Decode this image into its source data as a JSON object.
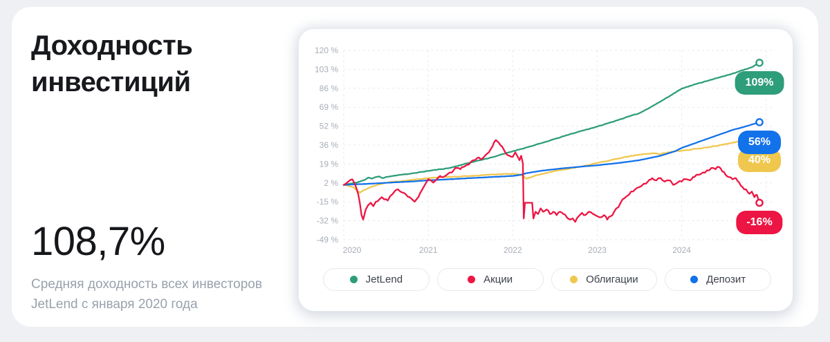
{
  "page": {
    "background": "#eef0f3",
    "card_background": "#ffffff"
  },
  "left_panel": {
    "title": "Доходность инвестиций",
    "big_number": "108,7%",
    "subtitle": "Средняя доходность всех инвесторов JetLend с января 2020 года"
  },
  "chart_data": {
    "type": "line",
    "grid": "dashed",
    "legend_position": "bottom",
    "x_axis": {
      "min": 2020,
      "max": 2025.1,
      "ticks": [
        2020,
        2021,
        2022,
        2023,
        2024
      ],
      "grid_years": [
        2020,
        2021,
        2022,
        2023,
        2024,
        2025
      ]
    },
    "y_axis": {
      "min": -49,
      "max": 120,
      "tick_labels": [
        "120 %",
        "103 %",
        "86 %",
        "69 %",
        "52 %",
        "36 %",
        "19 %",
        "2 %",
        "-15 %",
        "-32 %",
        "-49 %"
      ]
    },
    "series": [
      {
        "key": "jetlend",
        "name": "JetLend",
        "color": "#2E9D7A",
        "end_label": "109%",
        "noise": 0.2,
        "points": [
          [
            2020,
            0
          ],
          [
            2020.08,
            1
          ],
          [
            2020.17,
            2.5
          ],
          [
            2020.25,
            4.5
          ],
          [
            2020.29,
            6.5
          ],
          [
            2020.33,
            5.5
          ],
          [
            2020.38,
            7
          ],
          [
            2020.42,
            7.5
          ],
          [
            2020.46,
            6
          ],
          [
            2020.5,
            7
          ],
          [
            2020.58,
            8
          ],
          [
            2020.67,
            9
          ],
          [
            2020.75,
            9.5
          ],
          [
            2020.83,
            10.5
          ],
          [
            2020.92,
            11.5
          ],
          [
            2021,
            12.5
          ],
          [
            2021.25,
            15
          ],
          [
            2021.5,
            20
          ],
          [
            2021.75,
            24.5
          ],
          [
            2022,
            30
          ],
          [
            2022.17,
            33.5
          ],
          [
            2022.33,
            37
          ],
          [
            2022.5,
            41
          ],
          [
            2022.67,
            45
          ],
          [
            2022.83,
            48.5
          ],
          [
            2023,
            52
          ],
          [
            2023.17,
            56
          ],
          [
            2023.33,
            60
          ],
          [
            2023.5,
            64
          ],
          [
            2023.67,
            71
          ],
          [
            2023.83,
            78
          ],
          [
            2024,
            86
          ],
          [
            2024.17,
            90
          ],
          [
            2024.33,
            93.5
          ],
          [
            2024.5,
            97
          ],
          [
            2024.67,
            101
          ],
          [
            2024.83,
            105
          ],
          [
            2024.92,
            109
          ]
        ]
      },
      {
        "key": "stocks",
        "name": "Акции",
        "color": "#ED1543",
        "end_label": "-16%",
        "noise": 1.15,
        "points": [
          [
            2020,
            0
          ],
          [
            2020.04,
            2
          ],
          [
            2020.07,
            4
          ],
          [
            2020.1,
            5
          ],
          [
            2020.13,
            1
          ],
          [
            2020.15,
            -3
          ],
          [
            2020.17,
            -8
          ],
          [
            2020.19,
            -16
          ],
          [
            2020.21,
            -27
          ],
          [
            2020.23,
            -31
          ],
          [
            2020.26,
            -22
          ],
          [
            2020.29,
            -18
          ],
          [
            2020.32,
            -16
          ],
          [
            2020.35,
            -19
          ],
          [
            2020.38,
            -15
          ],
          [
            2020.42,
            -13
          ],
          [
            2020.45,
            -11
          ],
          [
            2020.48,
            -13
          ],
          [
            2020.52,
            -14
          ],
          [
            2020.55,
            -10
          ],
          [
            2020.58,
            -8
          ],
          [
            2020.61,
            -5
          ],
          [
            2020.64,
            -4
          ],
          [
            2020.67,
            -6
          ],
          [
            2020.7,
            -7
          ],
          [
            2020.74,
            -9
          ],
          [
            2020.78,
            -11
          ],
          [
            2020.81,
            -13
          ],
          [
            2020.84,
            -15
          ],
          [
            2020.87,
            -12
          ],
          [
            2020.9,
            -8
          ],
          [
            2020.93,
            -4
          ],
          [
            2020.96,
            0
          ],
          [
            2021,
            5
          ],
          [
            2021.03,
            4
          ],
          [
            2021.06,
            2
          ],
          [
            2021.1,
            5
          ],
          [
            2021.14,
            8
          ],
          [
            2021.18,
            7
          ],
          [
            2021.22,
            9
          ],
          [
            2021.26,
            11
          ],
          [
            2021.3,
            13
          ],
          [
            2021.34,
            15
          ],
          [
            2021.38,
            14
          ],
          [
            2021.42,
            16
          ],
          [
            2021.46,
            18
          ],
          [
            2021.5,
            20
          ],
          [
            2021.54,
            22
          ],
          [
            2021.58,
            24
          ],
          [
            2021.62,
            23
          ],
          [
            2021.66,
            25
          ],
          [
            2021.7,
            28
          ],
          [
            2021.74,
            32
          ],
          [
            2021.78,
            38
          ],
          [
            2021.8,
            40
          ],
          [
            2021.83,
            38
          ],
          [
            2021.86,
            35
          ],
          [
            2021.89,
            32
          ],
          [
            2021.92,
            28
          ],
          [
            2021.96,
            26
          ],
          [
            2022,
            25
          ],
          [
            2022.03,
            29
          ],
          [
            2022.06,
            25
          ],
          [
            2022.08,
            22
          ],
          [
            2022.1,
            26
          ],
          [
            2022.12,
            19
          ],
          [
            2022.13,
            -30
          ],
          [
            2022.145,
            -16
          ],
          [
            2022.23,
            -16
          ],
          [
            2022.245,
            -30
          ],
          [
            2022.27,
            -24
          ],
          [
            2022.3,
            -26
          ],
          [
            2022.33,
            -21
          ],
          [
            2022.36,
            -24
          ],
          [
            2022.4,
            -22
          ],
          [
            2022.44,
            -26
          ],
          [
            2022.48,
            -24
          ],
          [
            2022.52,
            -27
          ],
          [
            2022.56,
            -24
          ],
          [
            2022.6,
            -26
          ],
          [
            2022.64,
            -29
          ],
          [
            2022.68,
            -31
          ],
          [
            2022.71,
            -30
          ],
          [
            2022.74,
            -33
          ],
          [
            2022.78,
            -28
          ],
          [
            2022.82,
            -25
          ],
          [
            2022.86,
            -27
          ],
          [
            2022.9,
            -24
          ],
          [
            2022.95,
            -26
          ],
          [
            2023,
            -28
          ],
          [
            2023.04,
            -29
          ],
          [
            2023.08,
            -27
          ],
          [
            2023.12,
            -31
          ],
          [
            2023.16,
            -28
          ],
          [
            2023.2,
            -24
          ],
          [
            2023.25,
            -20
          ],
          [
            2023.3,
            -13
          ],
          [
            2023.35,
            -10
          ],
          [
            2023.4,
            -6
          ],
          [
            2023.45,
            -4
          ],
          [
            2023.5,
            -2
          ],
          [
            2023.55,
            1
          ],
          [
            2023.6,
            3
          ],
          [
            2023.65,
            6
          ],
          [
            2023.7,
            4
          ],
          [
            2023.75,
            6
          ],
          [
            2023.8,
            3
          ],
          [
            2023.85,
            4
          ],
          [
            2023.9,
            0
          ],
          [
            2023.95,
            2
          ],
          [
            2024,
            3
          ],
          [
            2024.05,
            5
          ],
          [
            2024.1,
            4
          ],
          [
            2024.15,
            7
          ],
          [
            2024.2,
            9
          ],
          [
            2024.25,
            11
          ],
          [
            2024.3,
            13
          ],
          [
            2024.35,
            15
          ],
          [
            2024.4,
            14
          ],
          [
            2024.44,
            16
          ],
          [
            2024.48,
            12
          ],
          [
            2024.52,
            9
          ],
          [
            2024.56,
            7
          ],
          [
            2024.6,
            5
          ],
          [
            2024.64,
            6
          ],
          [
            2024.68,
            2
          ],
          [
            2024.72,
            -2
          ],
          [
            2024.76,
            -4
          ],
          [
            2024.8,
            -8
          ],
          [
            2024.83,
            -6
          ],
          [
            2024.86,
            -11
          ],
          [
            2024.89,
            -9
          ],
          [
            2024.92,
            -16
          ]
        ]
      },
      {
        "key": "bonds",
        "name": "Облигации",
        "color": "#F0C74E",
        "end_label": "40%",
        "noise": 0.3,
        "points": [
          [
            2020,
            0
          ],
          [
            2020.06,
            -1
          ],
          [
            2020.12,
            -2.5
          ],
          [
            2020.19,
            -7
          ],
          [
            2020.23,
            -5
          ],
          [
            2020.29,
            -3
          ],
          [
            2020.33,
            -1.5
          ],
          [
            2020.42,
            0.5
          ],
          [
            2020.5,
            1.8
          ],
          [
            2020.63,
            3
          ],
          [
            2020.75,
            4
          ],
          [
            2020.88,
            5
          ],
          [
            2021,
            6
          ],
          [
            2021.17,
            6.8
          ],
          [
            2021.33,
            7.4
          ],
          [
            2021.5,
            8
          ],
          [
            2021.67,
            8.8
          ],
          [
            2021.83,
            9.5
          ],
          [
            2022,
            10
          ],
          [
            2022.08,
            9.3
          ],
          [
            2022.12,
            8
          ],
          [
            2022.16,
            5.5
          ],
          [
            2022.2,
            6.5
          ],
          [
            2022.25,
            7.8
          ],
          [
            2022.33,
            9.5
          ],
          [
            2022.42,
            11
          ],
          [
            2022.5,
            12.5
          ],
          [
            2022.63,
            14
          ],
          [
            2022.75,
            15.5
          ],
          [
            2022.88,
            17.5
          ],
          [
            2023,
            19.5
          ],
          [
            2023.13,
            21.5
          ],
          [
            2023.25,
            23.5
          ],
          [
            2023.38,
            25.5
          ],
          [
            2023.5,
            27
          ],
          [
            2023.6,
            27.8
          ],
          [
            2023.68,
            28.2
          ],
          [
            2023.73,
            27.4
          ],
          [
            2023.8,
            28.4
          ],
          [
            2023.92,
            30
          ],
          [
            2024.05,
            31
          ],
          [
            2024.2,
            32.5
          ],
          [
            2024.35,
            34
          ],
          [
            2024.5,
            36
          ],
          [
            2024.65,
            38.5
          ],
          [
            2024.75,
            39.5
          ],
          [
            2024.92,
            40
          ]
        ]
      },
      {
        "key": "deposit",
        "name": "Депозит",
        "color": "#1272EA",
        "end_label": "56%",
        "noise": 0.05,
        "points": [
          [
            2020,
            0
          ],
          [
            2020.25,
            0.8
          ],
          [
            2020.5,
            1.8
          ],
          [
            2020.75,
            2.8
          ],
          [
            2021,
            4
          ],
          [
            2021.25,
            5
          ],
          [
            2021.5,
            6
          ],
          [
            2021.75,
            7
          ],
          [
            2022,
            8
          ],
          [
            2022.08,
            8.8
          ],
          [
            2022.17,
            10.5
          ],
          [
            2022.33,
            12.5
          ],
          [
            2022.5,
            14
          ],
          [
            2022.67,
            15.3
          ],
          [
            2022.83,
            16.4
          ],
          [
            2023,
            17.5
          ],
          [
            2023.25,
            19.5
          ],
          [
            2023.5,
            22
          ],
          [
            2023.75,
            26
          ],
          [
            2023.92,
            30
          ],
          [
            2024,
            33
          ],
          [
            2024.15,
            37
          ],
          [
            2024.3,
            41
          ],
          [
            2024.45,
            45
          ],
          [
            2024.6,
            49
          ],
          [
            2024.75,
            52
          ],
          [
            2024.92,
            56
          ]
        ]
      }
    ]
  }
}
